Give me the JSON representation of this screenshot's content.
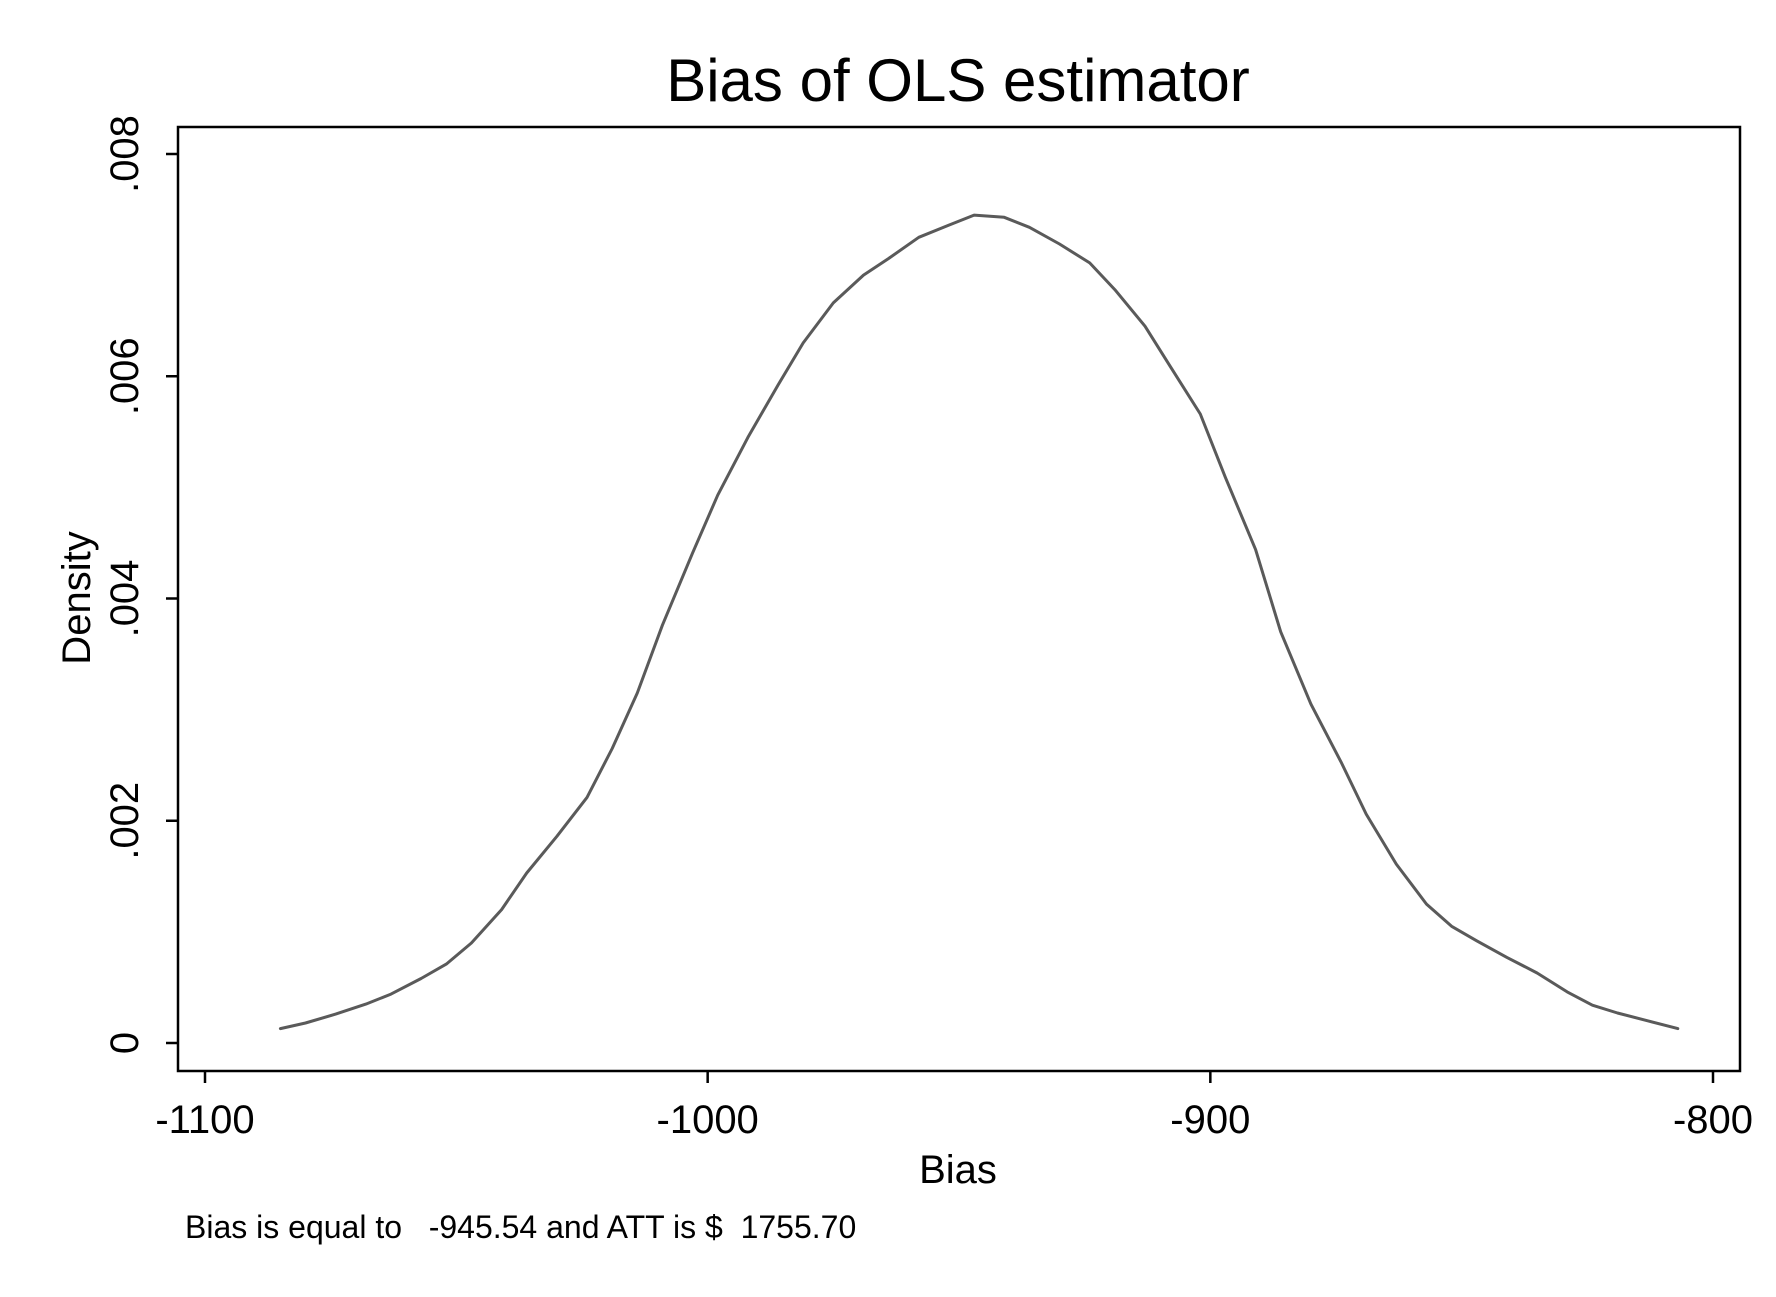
{
  "chart_data": {
    "type": "line",
    "title": "Bias of OLS estimator",
    "xlabel": "Bias",
    "ylabel": "Density",
    "note": "Bias is equal to   -945.54 and ATT is $  1755.70",
    "xlim": [
      -1100,
      -800
    ],
    "ylim": [
      0,
      0.008
    ],
    "x_ticks": [
      {
        "value": -1100,
        "label": "-1100"
      },
      {
        "value": -1000,
        "label": "-1000"
      },
      {
        "value": -900,
        "label": "-900"
      },
      {
        "value": -800,
        "label": "-800"
      }
    ],
    "y_ticks": [
      {
        "value": 0,
        "label": "0"
      },
      {
        "value": 0.002,
        "label": ".002"
      },
      {
        "value": 0.004,
        "label": ".004"
      },
      {
        "value": 0.006,
        "label": ".006"
      },
      {
        "value": 0.008,
        "label": ".008"
      }
    ],
    "grid": false,
    "legend": "none",
    "colors": {
      "line": "#5a5a5a",
      "axis": "#000000",
      "background": "#ffffff"
    },
    "series": [
      {
        "x": [
          -1085,
          -1080,
          -1074,
          -1068,
          -1063,
          -1057,
          -1052,
          -1047,
          -1041,
          -1036,
          -1030,
          -1024,
          -1019,
          -1014,
          -1009,
          -1003,
          -998,
          -992,
          -986,
          -981,
          -975,
          -969,
          -964,
          -958,
          -952,
          -947,
          -941,
          -936,
          -930,
          -924,
          -919,
          -913,
          -908,
          -902,
          -897,
          -891,
          -886,
          -880,
          -874,
          -869,
          -863,
          -857,
          -852,
          -847,
          -841,
          -835,
          -829,
          -824,
          -819,
          -813,
          -807
        ],
        "y": [
          0.00013,
          0.00018,
          0.00026,
          0.00035,
          0.00044,
          0.00058,
          0.00071,
          0.0009,
          0.0012,
          0.00153,
          0.00186,
          0.00221,
          0.00265,
          0.00315,
          0.00376,
          0.00441,
          0.00493,
          0.00545,
          0.00592,
          0.0063,
          0.00666,
          0.00691,
          0.00706,
          0.00725,
          0.00736,
          0.00745,
          0.00743,
          0.00734,
          0.00719,
          0.00702,
          0.00678,
          0.00645,
          0.00609,
          0.00566,
          0.00509,
          0.00444,
          0.0037,
          0.00305,
          0.00253,
          0.00206,
          0.00161,
          0.00125,
          0.00105,
          0.00092,
          0.00077,
          0.00063,
          0.00046,
          0.00034,
          0.00027,
          0.0002,
          0.00013
        ]
      }
    ]
  }
}
